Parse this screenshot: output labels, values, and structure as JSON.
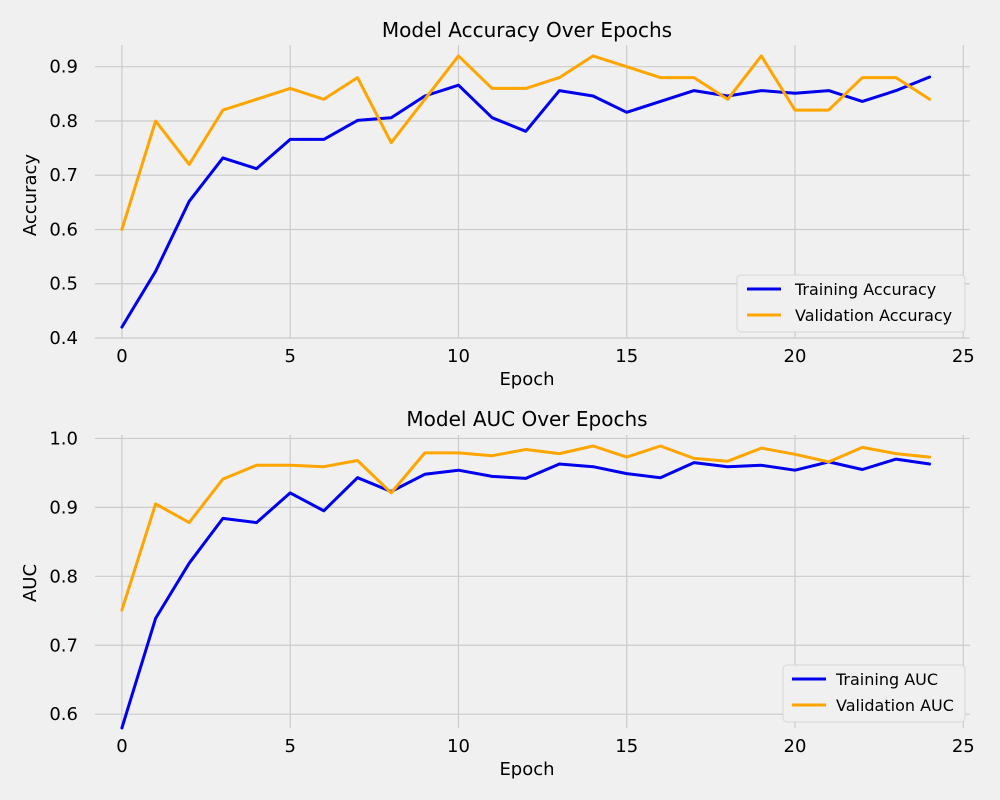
{
  "chart_data": [
    {
      "type": "line",
      "title": "Model Accuracy Over Epochs",
      "xlabel": "Epoch",
      "ylabel": "Accuracy",
      "xlim": [
        -0.8,
        25.2
      ],
      "ylim": [
        0.4,
        0.94
      ],
      "xticks": [
        0,
        5,
        10,
        15,
        20,
        25
      ],
      "yticks": [
        0.4,
        0.5,
        0.6,
        0.7,
        0.8,
        0.9
      ],
      "ytick_labels": [
        "0.4",
        "0.5",
        "0.6",
        "0.7",
        "0.8",
        "0.9"
      ],
      "grid": true,
      "legend_position": "lower-right",
      "x": [
        0,
        1,
        2,
        3,
        4,
        5,
        6,
        7,
        8,
        9,
        10,
        11,
        12,
        13,
        14,
        15,
        16,
        17,
        18,
        19,
        20,
        21,
        22,
        23,
        24
      ],
      "series": [
        {
          "name": "Training Accuracy",
          "color": "#0000ee",
          "values": [
            0.42,
            0.523,
            0.652,
            0.732,
            0.712,
            0.766,
            0.766,
            0.801,
            0.806,
            0.846,
            0.866,
            0.806,
            0.781,
            0.856,
            0.846,
            0.816,
            0.836,
            0.856,
            0.846,
            0.856,
            0.851,
            0.856,
            0.836,
            0.856,
            0.881
          ]
        },
        {
          "name": "Validation Accuracy",
          "color": "#ffa500",
          "values": [
            0.6,
            0.8,
            0.72,
            0.82,
            0.84,
            0.86,
            0.84,
            0.88,
            0.76,
            0.84,
            0.92,
            0.86,
            0.86,
            0.88,
            0.92,
            0.9,
            0.88,
            0.88,
            0.84,
            0.92,
            0.82,
            0.82,
            0.88,
            0.88,
            0.84
          ]
        }
      ]
    },
    {
      "type": "line",
      "title": "Model AUC Over Epochs",
      "xlabel": "Epoch",
      "ylabel": "AUC",
      "xlim": [
        -0.8,
        25.2
      ],
      "ylim": [
        0.58,
        1.005
      ],
      "xticks": [
        0,
        5,
        10,
        15,
        20,
        25
      ],
      "yticks": [
        0.6,
        0.7,
        0.8,
        0.9,
        1.0
      ],
      "ytick_labels": [
        "0.6",
        "0.7",
        "0.8",
        "0.9",
        "1.0"
      ],
      "grid": true,
      "legend_position": "lower-right",
      "x": [
        0,
        1,
        2,
        3,
        4,
        5,
        6,
        7,
        8,
        9,
        10,
        11,
        12,
        13,
        14,
        15,
        16,
        17,
        18,
        19,
        20,
        21,
        22,
        23,
        24
      ],
      "series": [
        {
          "name": "Training AUC",
          "color": "#0000ee",
          "values": [
            0.58,
            0.739,
            0.819,
            0.884,
            0.878,
            0.921,
            0.895,
            0.943,
            0.923,
            0.948,
            0.954,
            0.945,
            0.942,
            0.963,
            0.959,
            0.949,
            0.943,
            0.965,
            0.959,
            0.961,
            0.954,
            0.966,
            0.955,
            0.97,
            0.963
          ]
        },
        {
          "name": "Validation AUC",
          "color": "#ffa500",
          "values": [
            0.751,
            0.905,
            0.878,
            0.941,
            0.961,
            0.961,
            0.959,
            0.968,
            0.921,
            0.979,
            0.979,
            0.975,
            0.984,
            0.978,
            0.989,
            0.973,
            0.989,
            0.971,
            0.967,
            0.986,
            0.977,
            0.966,
            0.987,
            0.978,
            0.973
          ]
        }
      ]
    }
  ]
}
